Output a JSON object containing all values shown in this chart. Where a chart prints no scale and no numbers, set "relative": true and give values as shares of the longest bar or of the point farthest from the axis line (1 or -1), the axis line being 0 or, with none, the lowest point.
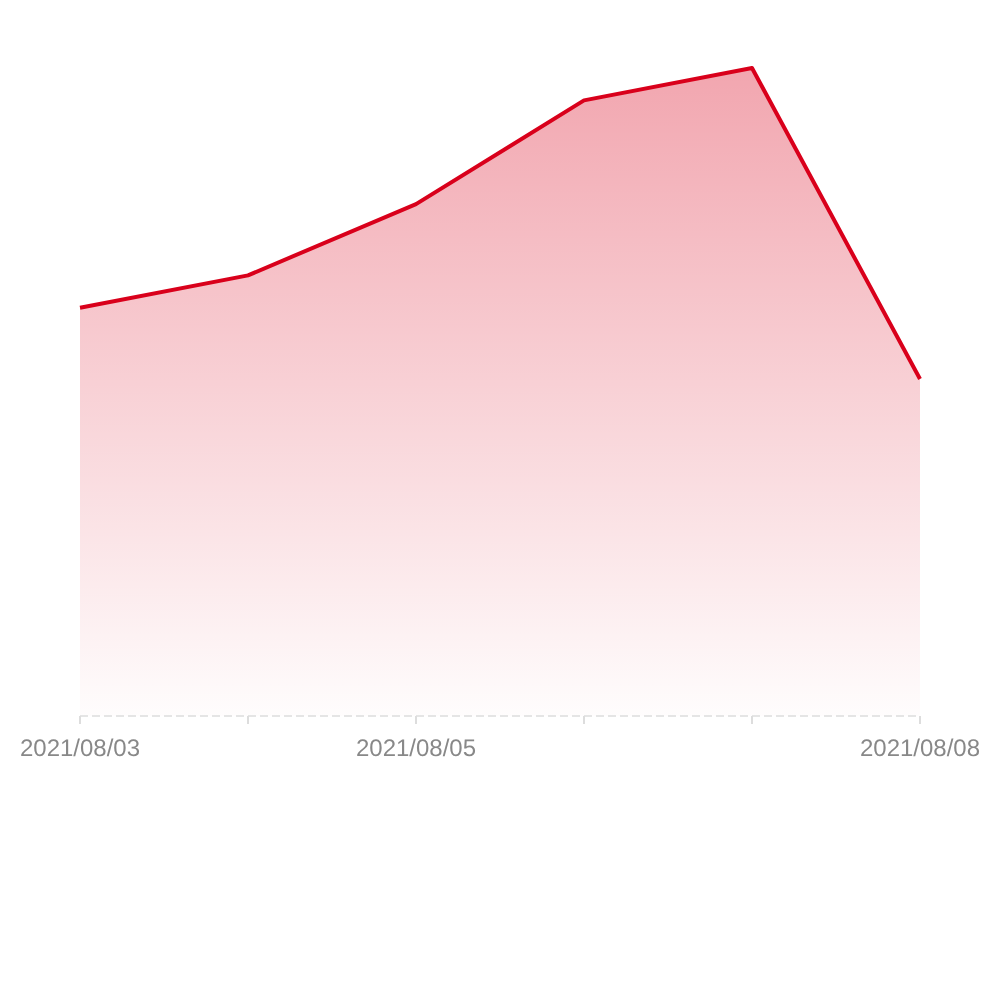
{
  "chart_data": {
    "type": "area",
    "relative": true,
    "categories": [
      "2021/08/03",
      null,
      "2021/08/05",
      null,
      null,
      "2021/08/08"
    ],
    "series": [
      {
        "color": "#d9001b",
        "values": [
          0.63,
          0.68,
          0.79,
          0.95,
          1,
          0.52
        ]
      }
    ]
  }
}
